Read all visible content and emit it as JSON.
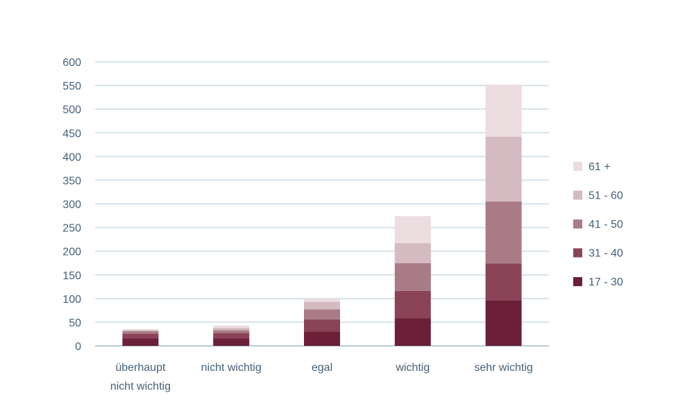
{
  "chart_data": {
    "type": "bar",
    "stacked": true,
    "title": "",
    "xlabel": "",
    "ylabel": "",
    "ylim": [
      0,
      600
    ],
    "yticks": [
      0,
      50,
      100,
      150,
      200,
      250,
      300,
      350,
      400,
      450,
      500,
      550,
      600
    ],
    "grid": true,
    "legend_position": "right",
    "categories": [
      [
        "überhaupt",
        "nicht wichtig"
      ],
      [
        "nicht wichtig"
      ],
      [
        "egal"
      ],
      [
        "wichtig"
      ],
      [
        "sehr wichtig"
      ]
    ],
    "series": [
      {
        "name": "17 - 30",
        "color": "#6b1f38",
        "values": [
          16,
          16,
          30,
          58,
          96
        ]
      },
      {
        "name": "31 - 40",
        "color": "#8a4357",
        "values": [
          10,
          11,
          26,
          58,
          78
        ]
      },
      {
        "name": "41 - 50",
        "color": "#a97b87",
        "values": [
          5,
          6,
          21,
          59,
          131
        ]
      },
      {
        "name": "51 - 60",
        "color": "#d5bac2",
        "values": [
          3,
          5,
          16,
          42,
          137
        ]
      },
      {
        "name": "61 +",
        "color": "#ecdde1",
        "values": [
          1,
          5,
          7,
          57,
          110
        ]
      }
    ]
  }
}
